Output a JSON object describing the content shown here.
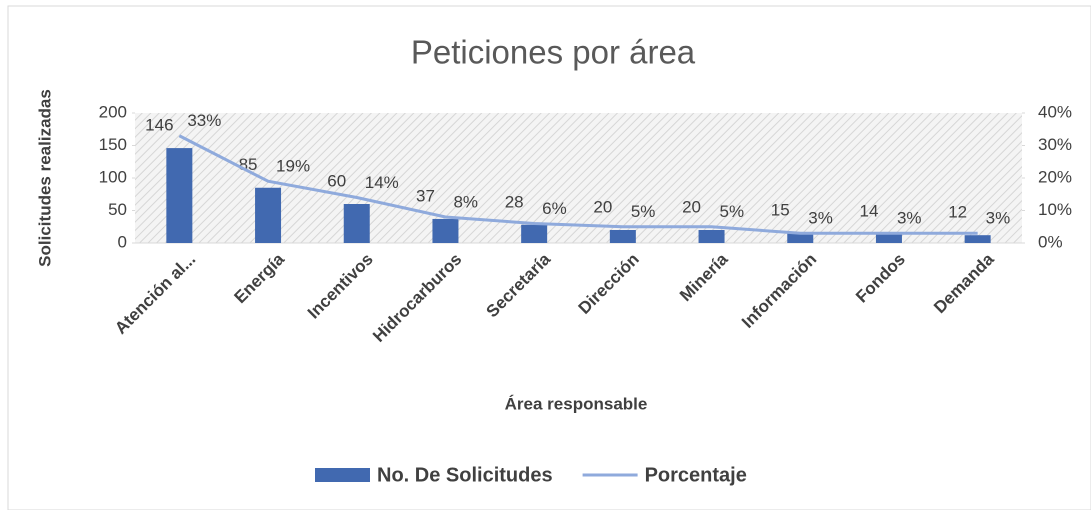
{
  "chart_data": {
    "type": "bar",
    "title": "Peticiones por área",
    "x_label": "Área responsable",
    "y_label": "Solicitudes realizadas",
    "categories": [
      "Atención al...",
      "Energía",
      "Incentivos",
      "Hidrocarburos",
      "Secretaría",
      "Dirección",
      "Minería",
      "Información",
      "Fondos",
      "Demanda"
    ],
    "series": [
      {
        "name": "No. De Solicitudes",
        "type": "bar",
        "color": "#4169b0",
        "values": [
          146,
          85,
          60,
          37,
          28,
          20,
          20,
          15,
          14,
          12
        ]
      },
      {
        "name": "Porcentaje",
        "type": "line",
        "axis": "y2",
        "color": "#8faadc",
        "values": [
          33,
          19,
          14,
          8,
          6,
          5,
          5,
          3,
          3,
          3
        ],
        "value_labels": [
          "33%",
          "19%",
          "14%",
          "8%",
          "6%",
          "5%",
          "5%",
          "3%",
          "3%",
          "3%"
        ]
      }
    ],
    "ylim": [
      0,
      200
    ],
    "yticks": [
      0,
      50,
      100,
      150,
      200
    ],
    "y2lim": [
      0,
      40
    ],
    "y2ticks": [
      {
        "value": 0,
        "label": "0%"
      },
      {
        "value": 10,
        "label": "10%"
      },
      {
        "value": 20,
        "label": "20%"
      },
      {
        "value": 30,
        "label": "30%"
      },
      {
        "value": 40,
        "label": "40%"
      }
    ],
    "legend": "bottom"
  }
}
